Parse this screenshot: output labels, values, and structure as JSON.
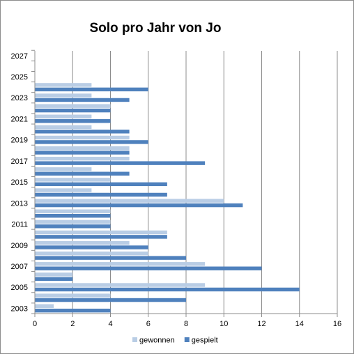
{
  "chart_data": {
    "type": "bar",
    "orientation": "horizontal",
    "title": "Solo pro Jahr von Jo",
    "xlabel": "",
    "ylabel": "",
    "xlim": [
      0,
      16
    ],
    "x_ticks": [
      0,
      2,
      4,
      6,
      8,
      10,
      12,
      14,
      16
    ],
    "categories": [
      2003,
      2004,
      2005,
      2006,
      2007,
      2008,
      2009,
      2010,
      2011,
      2012,
      2013,
      2014,
      2015,
      2016,
      2017,
      2018,
      2019,
      2020,
      2021,
      2022,
      2023,
      2024,
      2025,
      2026,
      2027
    ],
    "category_tick_labels": [
      "2003",
      "2005",
      "2007",
      "2009",
      "2011",
      "2013",
      "2015",
      "2017",
      "2019",
      "2021",
      "2023",
      "2025",
      "2027"
    ],
    "series": [
      {
        "name": "gewonnen",
        "color": "#b9cde5",
        "values": [
          1,
          4,
          9,
          2,
          9,
          6,
          5,
          7,
          4,
          4,
          10,
          3,
          4,
          3,
          5,
          5,
          5,
          3,
          3,
          4,
          3,
          3,
          null,
          null,
          null
        ]
      },
      {
        "name": "gespielt",
        "color": "#4f81bd",
        "values": [
          4,
          8,
          14,
          2,
          12,
          8,
          6,
          7,
          4,
          4,
          11,
          7,
          7,
          5,
          9,
          5,
          6,
          5,
          4,
          4,
          5,
          6,
          null,
          null,
          null
        ]
      }
    ],
    "grid": "vertical major gridlines",
    "legend": "bottom"
  }
}
